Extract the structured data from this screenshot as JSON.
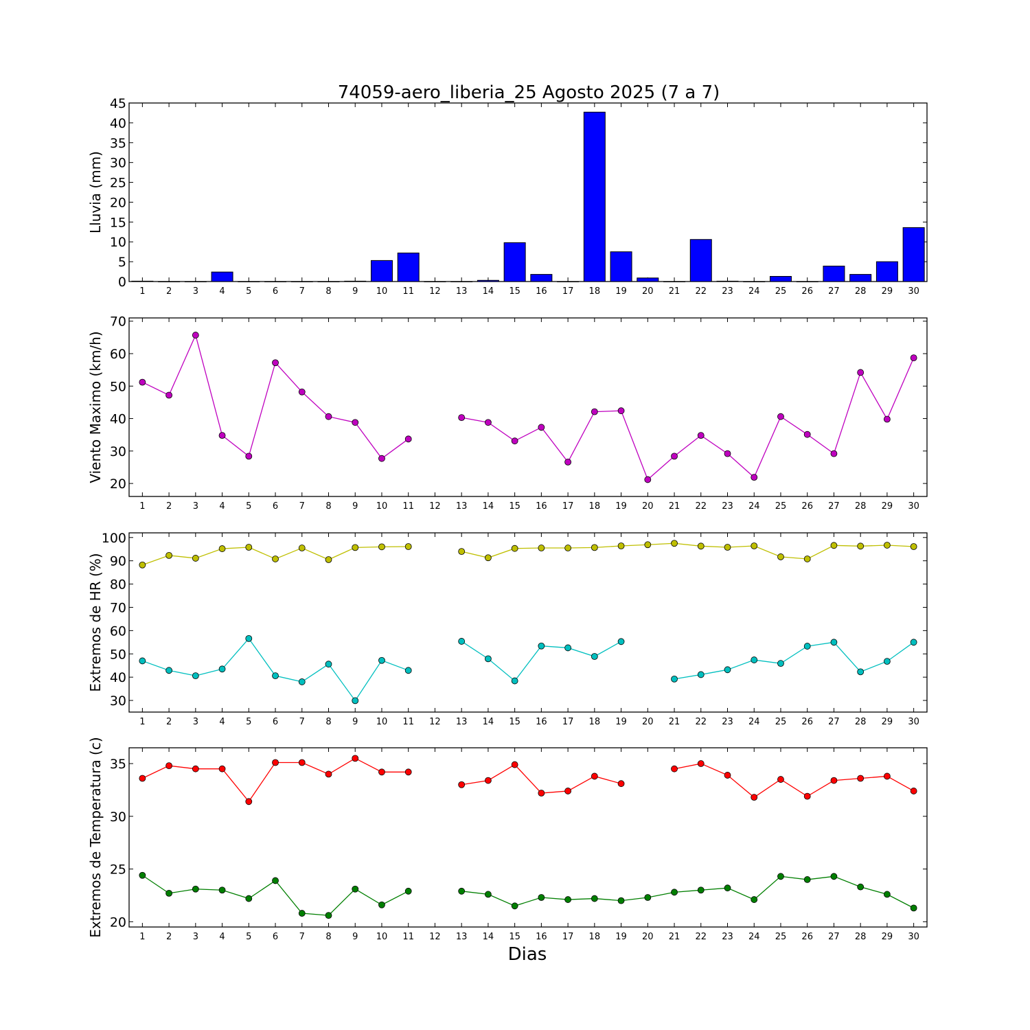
{
  "chart_data": {
    "title": "74059-aero_liberia_25 Agosto 2025  (7 a 7)",
    "xlabel": "Dias",
    "days": [
      1,
      2,
      3,
      4,
      5,
      6,
      7,
      8,
      9,
      10,
      11,
      12,
      13,
      14,
      15,
      16,
      17,
      18,
      19,
      20,
      21,
      22,
      23,
      24,
      25,
      26,
      27,
      28,
      29,
      30
    ],
    "panels": [
      {
        "type": "bar",
        "ylabel": "Lluvia (mm)",
        "ylim": [
          0,
          45
        ],
        "yticks": [
          0,
          5,
          10,
          15,
          20,
          25,
          30,
          35,
          40,
          45
        ],
        "series": [
          {
            "color": "#0000ff",
            "values": [
              0.1,
              0,
              0,
              2.4,
              0,
              0,
              0,
              0,
              0.1,
              5.3,
              7.2,
              0,
              0,
              0.3,
              9.8,
              1.8,
              0,
              42.7,
              7.5,
              0.9,
              0,
              10.6,
              0.1,
              0,
              1.3,
              0,
              3.9,
              1.8,
              5.0,
              13.6
            ]
          }
        ]
      },
      {
        "type": "line",
        "ylabel": "Viento Maximo (km/h)",
        "ylim": [
          16,
          71
        ],
        "yticks": [
          20,
          30,
          40,
          50,
          60,
          70
        ],
        "series": [
          {
            "color": "#bf00bf",
            "values": [
              51.2,
              47.2,
              65.7,
              34.8,
              28.4,
              57.2,
              48.2,
              40.6,
              38.8,
              27.7,
              33.7,
              null,
              40.3,
              38.8,
              33.1,
              37.3,
              26.6,
              42.1,
              42.4,
              21.2,
              28.4,
              34.8,
              29.2,
              21.9,
              40.6,
              35.1,
              29.2,
              54.2,
              39.8,
              58.7
            ]
          }
        ]
      },
      {
        "type": "line",
        "ylabel": "Extremos de HR (%)",
        "ylim": [
          25,
          102
        ],
        "yticks": [
          30,
          40,
          50,
          60,
          70,
          80,
          90,
          100
        ],
        "series": [
          {
            "color": "#bfbf00",
            "values": [
              88.2,
              92.3,
              91.1,
              95.2,
              95.8,
              90.8,
              95.5,
              90.5,
              95.7,
              96.0,
              96.1,
              null,
              94.0,
              91.3,
              95.3,
              95.5,
              95.5,
              95.7,
              96.4,
              96.9,
              97.5,
              96.3,
              95.8,
              96.4,
              91.7,
              90.8,
              96.6,
              96.3,
              96.7,
              96.1
            ]
          },
          {
            "color": "#00bfbf",
            "values": [
              47.0,
              42.9,
              40.6,
              43.5,
              56.6,
              40.6,
              38.0,
              45.6,
              29.9,
              47.2,
              42.9,
              null,
              55.4,
              47.9,
              38.4,
              53.4,
              52.6,
              48.9,
              55.3,
              null,
              39.2,
              41.1,
              43.2,
              47.4,
              45.9,
              53.3,
              55.0,
              42.3,
              46.8,
              55.0
            ]
          }
        ]
      },
      {
        "type": "line",
        "ylabel": "Extremos de Temperatura (c)",
        "ylim": [
          19.5,
          36.5
        ],
        "yticks": [
          20,
          25,
          30,
          35
        ],
        "series": [
          {
            "color": "#ff0000",
            "values": [
              33.6,
              34.8,
              34.5,
              34.5,
              31.4,
              35.1,
              35.1,
              34.0,
              35.5,
              34.2,
              34.2,
              null,
              33.0,
              33.4,
              34.9,
              32.2,
              32.4,
              33.8,
              33.1,
              null,
              34.5,
              35.0,
              33.9,
              31.8,
              33.5,
              31.9,
              33.4,
              33.6,
              33.8,
              32.4
            ]
          },
          {
            "color": "#007f00",
            "values": [
              24.4,
              22.7,
              23.1,
              23.0,
              22.2,
              23.9,
              20.8,
              20.6,
              23.1,
              21.6,
              22.9,
              null,
              22.9,
              22.6,
              21.5,
              22.3,
              22.1,
              22.2,
              22.0,
              22.3,
              22.8,
              23.0,
              23.2,
              22.1,
              24.3,
              24.0,
              24.3,
              23.3,
              22.6,
              21.3
            ]
          }
        ]
      }
    ]
  }
}
